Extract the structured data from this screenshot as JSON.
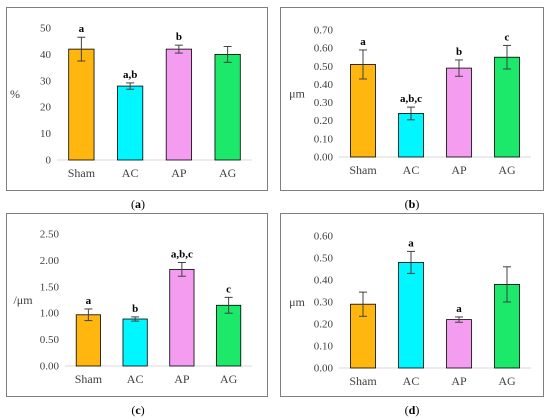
{
  "colors": {
    "sham": "#FFB60F",
    "ac": "#00F7FF",
    "ap": "#F49CF0",
    "ag": "#1CE86A",
    "axis": "#D9D9D9",
    "text": "#404040",
    "box_border": "#7F7F7F",
    "error_bar": "#404040"
  },
  "chart_data": [
    {
      "type": "bar",
      "panel": "a",
      "caption": "(a)",
      "categories": [
        "Sham",
        "AC",
        "AP",
        "AG"
      ],
      "values": [
        42,
        28,
        42,
        40
      ],
      "errors": [
        4.5,
        1.2,
        1.5,
        3
      ],
      "significance": [
        "a",
        "a,b",
        "b",
        ""
      ],
      "ylabel": "%",
      "ylim": [
        0,
        50
      ],
      "yticks": [
        "0",
        "10",
        "20",
        "30",
        "40",
        "50"
      ],
      "grid": false
    },
    {
      "type": "bar",
      "panel": "b",
      "caption": "(b)",
      "categories": [
        "Sham",
        "AC",
        "AP",
        "AG"
      ],
      "values": [
        0.51,
        0.24,
        0.49,
        0.55
      ],
      "errors": [
        0.08,
        0.035,
        0.045,
        0.065
      ],
      "significance": [
        "a",
        "a,b,c",
        "b",
        "c"
      ],
      "ylabel": "μm",
      "ylim": [
        0,
        0.7
      ],
      "yticks": [
        "0.00",
        "0.10",
        "0.20",
        "0.30",
        "0.40",
        "0.50",
        "0.60",
        "0.70"
      ],
      "grid": false
    },
    {
      "type": "bar",
      "panel": "c",
      "caption": "(c)",
      "categories": [
        "Sham",
        "AC",
        "AP",
        "AG"
      ],
      "values": [
        0.97,
        0.89,
        1.83,
        1.15
      ],
      "errors": [
        0.11,
        0.04,
        0.13,
        0.15
      ],
      "significance": [
        "a",
        "b",
        "a,b,c",
        "c"
      ],
      "ylabel": "/μm",
      "ylim": [
        0,
        2.5
      ],
      "yticks": [
        "0.00",
        "0.50",
        "1.00",
        "1.50",
        "2.00",
        "2.50"
      ],
      "grid": false
    },
    {
      "type": "bar",
      "panel": "d",
      "caption": "(d)",
      "categories": [
        "Sham",
        "AC",
        "AP",
        "AG"
      ],
      "values": [
        0.29,
        0.48,
        0.22,
        0.38
      ],
      "errors": [
        0.055,
        0.05,
        0.012,
        0.08
      ],
      "significance": [
        "",
        "a",
        "a",
        ""
      ],
      "ylabel": "μm",
      "ylim": [
        0,
        0.6
      ],
      "yticks": [
        "0.00",
        "0.10",
        "0.20",
        "0.30",
        "0.40",
        "0.50",
        "0.60"
      ],
      "grid": false
    }
  ]
}
